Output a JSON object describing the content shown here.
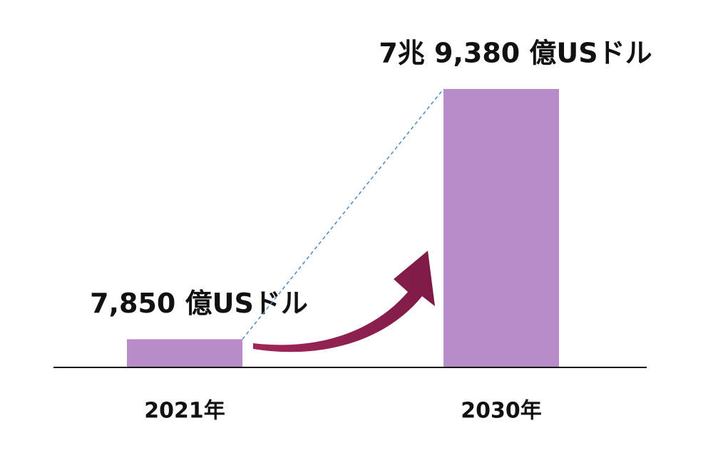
{
  "chart_data": {
    "type": "bar",
    "categories": [
      "2021年",
      "2030年"
    ],
    "values": [
      7850,
      79380
    ],
    "value_labels": [
      "7,850 億USドル",
      "7兆 9,380 億USドル"
    ],
    "color": "#b88bc9"
  }
}
